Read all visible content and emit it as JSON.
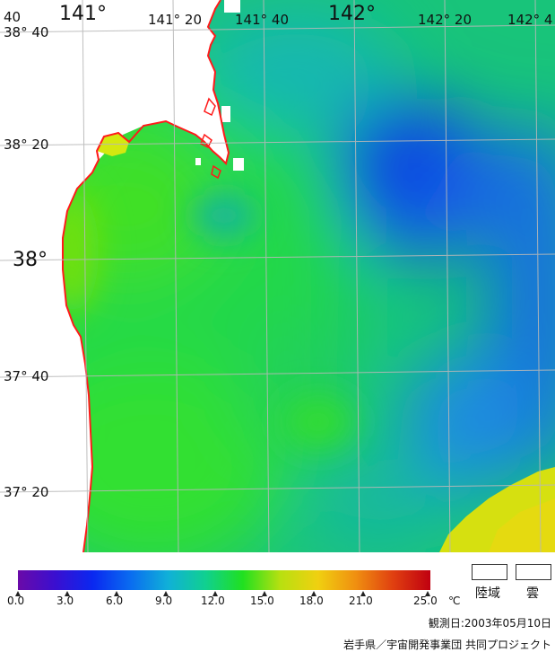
{
  "map": {
    "lon_labels": {
      "lon_140_40": "40",
      "lon_141": "141°",
      "lon_141_20": "141° 20",
      "lon_141_40": "141° 40",
      "lon_142": "142°",
      "lon_142_20": "142° 20",
      "lon_142_40": "142° 4"
    },
    "lat_labels": {
      "lat_38_40": "38° 40",
      "lat_38_20": "38° 20",
      "lat_38": "38°",
      "lat_37_40": "37° 40",
      "lat_37_20": "37° 20"
    },
    "colors": {
      "coastline": "#ff1a1a",
      "land": "#ffffff",
      "graticule": "#b8b8b8"
    }
  },
  "legend": {
    "ticks": [
      "0.0",
      "3.0",
      "6.0",
      "9.0",
      "12.0",
      "15.0",
      "18.0",
      "21.0",
      "25.0"
    ],
    "unit": "℃",
    "land_label": "陸域",
    "cloud_label": "雲",
    "colorbar_stops": [
      "#6a0aa8",
      "#3a0fd0",
      "#0a28f0",
      "#0a6cf0",
      "#10b0d8",
      "#10d090",
      "#20e020",
      "#b8e010",
      "#f0d010",
      "#f09010",
      "#e04010",
      "#c00010"
    ]
  },
  "footer": {
    "observation_date": "観測日:2003年05月10日",
    "credit": "岩手県／宇宙開発事業団 共同プロジェクト"
  }
}
